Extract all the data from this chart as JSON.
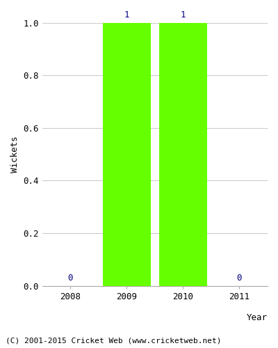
{
  "years": [
    2008,
    2009,
    2010,
    2011
  ],
  "values": [
    0,
    1,
    1,
    0
  ],
  "bar_color": "#66ff00",
  "bar_edgecolor": "#66ff00",
  "label_color": "#000080",
  "xlabel": "Year",
  "ylabel": "Wickets",
  "ylim": [
    0.0,
    1.0
  ],
  "yticks": [
    0.0,
    0.2,
    0.4,
    0.6,
    0.8,
    1.0
  ],
  "xticks": [
    2008,
    2009,
    2010,
    2011
  ],
  "xlim": [
    2007.5,
    2011.5
  ],
  "grid_color": "#cccccc",
  "background_color": "#ffffff",
  "footer_text": "(C) 2001-2015 Cricket Web (www.cricketweb.net)",
  "bar_width": 0.85,
  "label_fontsize": 9,
  "axis_label_fontsize": 9,
  "tick_fontsize": 9,
  "footer_fontsize": 8
}
